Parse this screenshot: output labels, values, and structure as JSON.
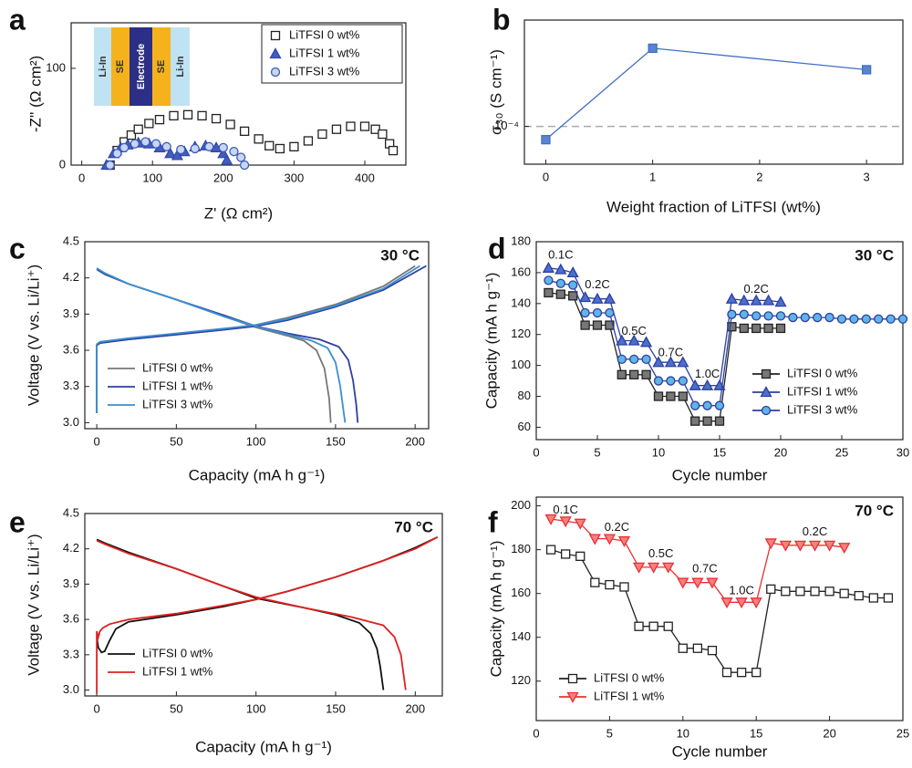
{
  "chart_data": [
    {
      "type": "scatter",
      "panel_label": "a",
      "xlabel": "Z' (Ω cm²)",
      "ylabel": "-Z'' (Ω cm²)",
      "xlim": [
        -15,
        458
      ],
      "ylim": [
        0,
        147
      ],
      "xticks": [
        0,
        100,
        200,
        300,
        400
      ],
      "yticks": [
        0,
        100
      ],
      "legend": "upper right",
      "inset_labels": [
        "Li-In",
        "SE",
        "Electrode",
        "SE",
        "Li-In"
      ],
      "series": [
        {
          "name": "LiTFSI 0 wt%",
          "color": "#222222",
          "marker": "square",
          "marker_fill": "#ffffff",
          "x": [
            40,
            50,
            60,
            70,
            80,
            95,
            110,
            130,
            150,
            170,
            190,
            210,
            230,
            250,
            265,
            280,
            300,
            320,
            340,
            360,
            380,
            400,
            415,
            425,
            435,
            440
          ],
          "values": [
            0,
            15,
            24,
            31,
            37,
            43,
            47,
            51,
            52,
            51,
            48,
            42,
            35,
            27,
            20,
            17,
            19,
            25,
            32,
            37,
            40,
            40,
            37,
            32,
            22,
            15
          ]
        },
        {
          "name": "LiTFSI 1 wt%",
          "color": "#3548a8",
          "marker": "triangle",
          "marker_fill": "#3f5fc0",
          "x": [
            35,
            45,
            55,
            65,
            80,
            95,
            110,
            125,
            135,
            145,
            160,
            175,
            190,
            200,
            205
          ],
          "values": [
            0,
            12,
            18,
            21,
            23,
            22,
            18,
            12,
            10,
            14,
            19,
            20,
            18,
            12,
            5
          ]
        },
        {
          "name": "LiTFSI 3 wt%",
          "color": "#3a5bb8",
          "marker": "circle",
          "marker_fill": "#c9d6f2",
          "x": [
            40,
            50,
            60,
            75,
            90,
            105,
            120,
            140,
            160,
            180,
            200,
            215,
            225,
            230
          ],
          "values": [
            0,
            12,
            18,
            22,
            24,
            22,
            19,
            16,
            17,
            19,
            18,
            14,
            8,
            0
          ]
        }
      ]
    },
    {
      "type": "line",
      "panel_label": "b",
      "xlabel": "Weight fraction of LiTFSI (wt%)",
      "ylabel": "σ₃₀ (S cm⁻¹)",
      "log_y": true,
      "xlim": [
        -0.2,
        3.34
      ],
      "ylim": [
        6.3e-05,
        0.000367
      ],
      "xticks": [
        0,
        1,
        2,
        3
      ],
      "yticks": [
        {
          "value": 0.0001,
          "label": "10⁻⁴"
        }
      ],
      "grid": true,
      "series": [
        {
          "color": "#3f6fc4",
          "marker": "square",
          "marker_fill": "#5b84d0",
          "x": [
            0,
            1,
            3
          ],
          "values": [
            8.5e-05,
            0.00026,
            0.0002
          ]
        }
      ]
    },
    {
      "type": "line",
      "panel_label": "c",
      "xlabel": "Capacity (mA h g⁻¹)",
      "ylabel": "Voltage (V vs. Li/Li⁺)",
      "temperature": "30 °C",
      "xlim": [
        -7.5,
        208.5
      ],
      "ylim": [
        2.95,
        4.5
      ],
      "xticks": [
        0,
        50,
        100,
        150,
        200
      ],
      "yticks": [
        {
          "value": 3,
          "label": "3.0"
        },
        3.3,
        3.6,
        3.9,
        4.2,
        4.5
      ],
      "legend": "lower left",
      "series": [
        {
          "name": "LiTFSI 0 wt%",
          "color": "#777777",
          "x": [
            0,
            0,
            2,
            20,
            50,
            80,
            100,
            120,
            150,
            180,
            200,
            null,
            0,
            5,
            20,
            50,
            80,
            100,
            120,
            130,
            138,
            143,
            146,
            147
          ],
          "values": [
            3.08,
            3.64,
            3.66,
            3.69,
            3.73,
            3.77,
            3.81,
            3.87,
            3.98,
            4.13,
            4.3,
            null,
            4.28,
            4.24,
            4.15,
            4.02,
            3.88,
            3.79,
            3.72,
            3.68,
            3.6,
            3.45,
            3.2,
            3.0
          ]
        },
        {
          "name": "LiTFSI 1 wt%",
          "color": "#2e3f9e",
          "x": [
            0,
            0,
            2,
            20,
            50,
            80,
            100,
            120,
            150,
            180,
            207,
            null,
            0,
            5,
            20,
            50,
            80,
            100,
            120,
            140,
            152,
            158,
            161,
            163,
            164
          ],
          "values": [
            3.08,
            3.64,
            3.66,
            3.69,
            3.73,
            3.77,
            3.8,
            3.85,
            3.96,
            4.1,
            4.3,
            null,
            4.27,
            4.23,
            4.15,
            4.02,
            3.89,
            3.8,
            3.74,
            3.69,
            3.63,
            3.52,
            3.35,
            3.15,
            3.0
          ]
        },
        {
          "name": "LiTFSI 3 wt%",
          "color": "#3a8fd0",
          "x": [
            0,
            0,
            2,
            20,
            50,
            80,
            100,
            120,
            150,
            180,
            203,
            null,
            0,
            5,
            20,
            50,
            80,
            100,
            120,
            135,
            145,
            150,
            153,
            155,
            156
          ],
          "values": [
            3.08,
            3.65,
            3.67,
            3.7,
            3.74,
            3.78,
            3.81,
            3.86,
            3.97,
            4.11,
            4.3,
            null,
            4.28,
            4.24,
            4.15,
            4.02,
            3.88,
            3.8,
            3.73,
            3.68,
            3.62,
            3.5,
            3.3,
            3.1,
            3.0
          ]
        }
      ]
    },
    {
      "type": "line",
      "panel_label": "d",
      "xlabel": "Cycle number",
      "ylabel": "Capacity (mA h g⁻¹)",
      "temperature": "30 °C",
      "xlim": [
        0,
        30
      ],
      "ylim": [
        52,
        180
      ],
      "xticks": [
        0,
        5,
        10,
        15,
        20,
        25,
        30
      ],
      "yticks": [
        60,
        80,
        100,
        120,
        140,
        160,
        180
      ],
      "legend": "lower right",
      "annotations": [
        "0.1C",
        "0.2C",
        "0.5C",
        "0.7C",
        "1.0C",
        "0.2C"
      ],
      "series": [
        {
          "name": "LiTFSI 0 wt%",
          "color": "#222222",
          "marker": "square",
          "marker_fill": "#777777",
          "x": [
            1,
            2,
            3,
            4,
            5,
            6,
            7,
            8,
            9,
            10,
            11,
            12,
            13,
            14,
            15,
            16,
            17,
            18,
            19,
            20
          ],
          "values": [
            147,
            146,
            145,
            126,
            126,
            126,
            94,
            94,
            94,
            80,
            80,
            80,
            64,
            64,
            64,
            125,
            124,
            124,
            124,
            124
          ]
        },
        {
          "name": "LiTFSI 1 wt%",
          "color": "#2e3f9e",
          "marker": "triangle",
          "marker_fill": "#4a6fd0",
          "x": [
            1,
            2,
            3,
            4,
            5,
            6,
            7,
            8,
            9,
            10,
            11,
            12,
            13,
            14,
            15,
            16,
            17,
            18,
            19,
            20
          ],
          "values": [
            163,
            162,
            160,
            144,
            143,
            143,
            116,
            116,
            115,
            102,
            102,
            102,
            87,
            87,
            87,
            143,
            142,
            142,
            142,
            141
          ]
        },
        {
          "name": "LiTFSI 3 wt%",
          "color": "#2e3f9e",
          "marker": "circle",
          "marker_fill": "#5fb4e8",
          "x": [
            1,
            2,
            3,
            4,
            5,
            6,
            7,
            8,
            9,
            10,
            11,
            12,
            13,
            14,
            15,
            16,
            17,
            18,
            19,
            20,
            21,
            22,
            23,
            24,
            25,
            26,
            27,
            28,
            29,
            30
          ],
          "values": [
            155,
            153,
            152,
            134,
            134,
            134,
            104,
            104,
            104,
            90,
            90,
            90,
            74,
            74,
            74,
            133,
            133,
            132,
            132,
            132,
            131,
            131,
            131,
            131,
            130,
            130,
            130,
            130,
            130,
            130
          ]
        }
      ]
    },
    {
      "type": "line",
      "panel_label": "e",
      "xlabel": "Capacity (mA h g⁻¹)",
      "ylabel": "Voltage (V vs. Li/Li⁺)",
      "temperature": "70 °C",
      "xlim": [
        -7.5,
        217
      ],
      "ylim": [
        2.95,
        4.5
      ],
      "xticks": [
        0,
        50,
        100,
        150,
        200
      ],
      "yticks": [
        {
          "value": 3,
          "label": "3.0"
        },
        3.3,
        3.6,
        3.9,
        4.2,
        4.5
      ],
      "legend": "lower left",
      "series": [
        {
          "name": "LiTFSI 0 wt%",
          "color": "#111111",
          "x": [
            0,
            1,
            3,
            5,
            8,
            12,
            20,
            50,
            80,
            100,
            120,
            150,
            180,
            200,
            214,
            null,
            0,
            5,
            20,
            50,
            80,
            100,
            130,
            150,
            165,
            172,
            176,
            178,
            180
          ],
          "values": [
            3.45,
            3.36,
            3.32,
            3.33,
            3.42,
            3.52,
            3.58,
            3.64,
            3.71,
            3.77,
            3.84,
            3.96,
            4.1,
            4.21,
            4.3,
            null,
            4.28,
            4.25,
            4.17,
            4.03,
            3.88,
            3.78,
            3.7,
            3.64,
            3.57,
            3.48,
            3.35,
            3.2,
            3.0
          ]
        },
        {
          "name": "LiTFSI 1 wt%",
          "color": "#e02020",
          "x": [
            0,
            0,
            1,
            2,
            4,
            8,
            20,
            50,
            80,
            100,
            120,
            150,
            180,
            200,
            214,
            null,
            0,
            5,
            20,
            50,
            80,
            100,
            130,
            160,
            180,
            187,
            191,
            193,
            194
          ],
          "values": [
            2.97,
            3.5,
            3.45,
            3.5,
            3.53,
            3.56,
            3.6,
            3.65,
            3.72,
            3.77,
            3.84,
            3.96,
            4.1,
            4.2,
            4.3,
            null,
            4.27,
            4.24,
            4.16,
            4.03,
            3.88,
            3.79,
            3.7,
            3.62,
            3.55,
            3.45,
            3.3,
            3.1,
            3.0
          ]
        }
      ]
    },
    {
      "type": "line",
      "panel_label": "f",
      "xlabel": "Cycle number",
      "ylabel": "Capacity (mA h g⁻¹)",
      "temperature": "70 °C",
      "xlim": [
        0,
        25
      ],
      "ylim": [
        102,
        204
      ],
      "xticks": [
        0,
        5,
        10,
        15,
        20,
        25
      ],
      "yticks": [
        120,
        140,
        160,
        180,
        200
      ],
      "legend": "lower left",
      "annotations": [
        "0.1C",
        "0.2C",
        "0.5C",
        "0.7C",
        "1.0C",
        "0.2C"
      ],
      "series": [
        {
          "name": "LiTFSI 0 wt%",
          "color": "#222222",
          "marker": "square",
          "marker_fill": "#ffffff",
          "x": [
            1,
            2,
            3,
            4,
            5,
            6,
            7,
            8,
            9,
            10,
            11,
            12,
            13,
            14,
            15,
            16,
            17,
            18,
            19,
            20,
            21,
            22,
            23,
            24
          ],
          "values": [
            180,
            178,
            177,
            165,
            164,
            163,
            145,
            145,
            145,
            135,
            135,
            134,
            124,
            124,
            124,
            162,
            161,
            161,
            161,
            161,
            160,
            159,
            158,
            158
          ]
        },
        {
          "name": "LiTFSI 1 wt%",
          "color": "#e83030",
          "marker": "tri-down",
          "marker_fill": "#f58080",
          "x": [
            1,
            2,
            3,
            4,
            5,
            6,
            7,
            8,
            9,
            10,
            11,
            12,
            13,
            14,
            15,
            16,
            17,
            18,
            19,
            20,
            21
          ],
          "values": [
            194,
            193,
            192,
            185,
            185,
            184,
            172,
            172,
            172,
            165,
            165,
            165,
            156,
            156,
            156,
            183,
            182,
            182,
            182,
            182,
            181
          ]
        }
      ]
    }
  ]
}
